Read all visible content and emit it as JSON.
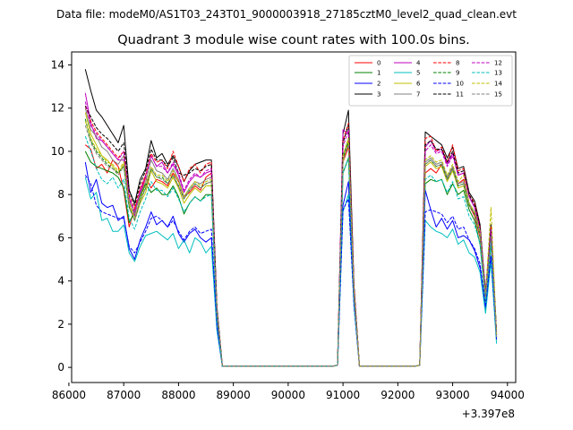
{
  "figure": {
    "suptitle": "Data file: modeM0/AS1T03_243T01_9000003918_27185cztM0_level2_quad_clean.evt"
  },
  "chart_data": {
    "type": "line",
    "title": "Quadrant 3 module wise count rates with 100.0s bins.",
    "xlabel": "",
    "ylabel": "",
    "xlim": [
      86050,
      94150
    ],
    "ylim": [
      -0.7,
      14.6
    ],
    "x_offset_label": "+3.397e8",
    "xticks": [
      86000,
      87000,
      88000,
      89000,
      90000,
      91000,
      92000,
      93000,
      94000
    ],
    "yticks": [
      0,
      2,
      4,
      6,
      8,
      10,
      12,
      14
    ],
    "legend_position": "top-right",
    "grid": false,
    "x": [
      86300,
      86400,
      86500,
      86600,
      86700,
      86800,
      86900,
      87000,
      87100,
      87200,
      87300,
      87400,
      87500,
      87600,
      87700,
      87800,
      87900,
      88000,
      88100,
      88200,
      88300,
      88400,
      88500,
      88600,
      88700,
      88800,
      88900,
      90800,
      90900,
      91000,
      91100,
      91200,
      91300,
      92300,
      92400,
      92500,
      92600,
      92700,
      92800,
      92900,
      93000,
      93100,
      93200,
      93300,
      93400,
      93500,
      93600,
      93700,
      93800
    ],
    "series": [
      {
        "name": "0",
        "color": "#ff0000",
        "dash": "solid",
        "values": [
          10.3,
          10.1,
          9.2,
          9.4,
          9.0,
          9.6,
          9.3,
          8.2,
          6.5,
          7.4,
          8.0,
          8.8,
          8.3,
          8.7,
          8.6,
          8.4,
          9.0,
          8.6,
          7.9,
          8.1,
          8.4,
          8.2,
          8.8,
          9.0,
          2.5,
          0.05,
          0.05,
          0.05,
          0.1,
          9.5,
          10.2,
          3.5,
          0.05,
          0.05,
          0.1,
          9.0,
          9.2,
          9.0,
          9.4,
          8.7,
          9.2,
          8.5,
          8.7,
          7.5,
          7.0,
          6.0,
          3.2,
          6.0,
          1.5
        ]
      },
      {
        "name": "1",
        "color": "#008000",
        "dash": "solid",
        "values": [
          10.0,
          9.5,
          9.3,
          9.2,
          9.1,
          9.0,
          8.8,
          8.3,
          6.7,
          7.2,
          7.9,
          8.5,
          8.1,
          8.3,
          8.0,
          8.0,
          8.4,
          7.9,
          7.1,
          7.6,
          7.9,
          7.7,
          8.0,
          8.0,
          2.3,
          0.05,
          0.05,
          0.05,
          0.1,
          9.0,
          9.7,
          3.3,
          0.05,
          0.05,
          0.1,
          8.5,
          8.7,
          8.6,
          8.7,
          8.0,
          8.5,
          8.0,
          8.2,
          7.3,
          6.8,
          5.7,
          3.0,
          5.7,
          1.4
        ]
      },
      {
        "name": "2",
        "color": "#0000ff",
        "dash": "solid",
        "values": [
          9.5,
          8.1,
          8.7,
          7.6,
          7.4,
          7.5,
          6.8,
          7.0,
          5.5,
          5.0,
          5.9,
          6.5,
          7.2,
          6.6,
          6.8,
          6.5,
          7.0,
          6.2,
          5.8,
          6.2,
          6.4,
          6.0,
          5.8,
          6.0,
          1.9,
          0.05,
          0.05,
          0.05,
          0.1,
          7.5,
          8.6,
          3.0,
          0.05,
          0.05,
          0.1,
          8.2,
          7.3,
          6.5,
          6.9,
          6.4,
          6.8,
          6.0,
          6.1,
          5.9,
          5.4,
          4.6,
          2.7,
          5.1,
          1.3
        ]
      },
      {
        "name": "3",
        "color": "#000000",
        "dash": "solid",
        "values": [
          13.8,
          12.8,
          11.9,
          11.6,
          11.2,
          10.8,
          10.4,
          11.2,
          8.2,
          7.6,
          8.7,
          9.2,
          10.5,
          9.7,
          9.9,
          9.4,
          9.8,
          9.3,
          8.6,
          9.1,
          9.4,
          9.5,
          9.6,
          9.6,
          2.8,
          0.05,
          0.05,
          0.05,
          0.1,
          10.8,
          11.9,
          3.8,
          0.05,
          0.05,
          0.1,
          10.9,
          10.7,
          10.5,
          10.3,
          9.7,
          10.2,
          9.2,
          9.3,
          8.1,
          7.7,
          6.6,
          3.5,
          6.6,
          1.6
        ]
      },
      {
        "name": "4",
        "color": "#bf00bf",
        "dash": "solid",
        "values": [
          12.7,
          11.3,
          10.6,
          10.5,
          10.2,
          9.9,
          9.6,
          9.6,
          7.8,
          7.0,
          8.1,
          8.9,
          9.8,
          9.3,
          9.5,
          9.0,
          9.4,
          8.9,
          8.1,
          8.6,
          8.9,
          8.8,
          9.0,
          9.1,
          2.6,
          0.05,
          0.05,
          0.05,
          0.1,
          11.0,
          10.8,
          3.6,
          0.05,
          0.05,
          0.1,
          10.2,
          10.5,
          10.0,
          10.1,
          9.4,
          9.9,
          8.9,
          9.0,
          7.9,
          7.4,
          6.4,
          3.4,
          6.4,
          1.5
        ]
      },
      {
        "name": "5",
        "color": "#00bfbf",
        "dash": "solid",
        "values": [
          8.8,
          7.8,
          8.1,
          6.8,
          6.9,
          6.3,
          6.3,
          6.6,
          5.3,
          4.9,
          5.6,
          6.1,
          6.2,
          6.3,
          6.1,
          5.9,
          6.2,
          5.5,
          5.9,
          5.3,
          6.0,
          5.8,
          5.3,
          5.6,
          1.7,
          0.05,
          0.05,
          0.05,
          0.1,
          7.2,
          8.0,
          2.8,
          0.05,
          0.05,
          0.1,
          6.8,
          6.5,
          6.3,
          6.2,
          6.0,
          6.4,
          5.7,
          5.9,
          5.3,
          5.1,
          4.4,
          2.5,
          4.9,
          1.1
        ]
      },
      {
        "name": "6",
        "color": "#bfbf00",
        "dash": "solid",
        "values": [
          11.8,
          10.8,
          10.3,
          9.8,
          9.6,
          9.3,
          9.0,
          9.4,
          7.5,
          6.8,
          7.6,
          8.1,
          9.1,
          8.6,
          8.5,
          8.3,
          8.8,
          8.3,
          7.6,
          8.0,
          8.3,
          8.1,
          8.4,
          8.4,
          2.5,
          0.05,
          0.05,
          0.05,
          0.1,
          9.5,
          10.5,
          3.4,
          0.05,
          0.05,
          0.1,
          9.3,
          9.5,
          9.2,
          9.3,
          8.6,
          9.1,
          8.3,
          8.4,
          7.5,
          7.1,
          6.1,
          3.2,
          6.1,
          1.4
        ]
      },
      {
        "name": "7",
        "color": "#808080",
        "dash": "solid",
        "values": [
          12.0,
          11.0,
          10.7,
          10.2,
          10.0,
          9.6,
          9.4,
          9.8,
          7.7,
          7.1,
          8.0,
          8.6,
          9.6,
          9.1,
          9.0,
          8.7,
          9.2,
          8.7,
          7.9,
          8.3,
          8.6,
          8.5,
          8.7,
          8.8,
          2.6,
          0.05,
          0.05,
          0.05,
          0.1,
          9.8,
          10.6,
          3.5,
          0.05,
          0.05,
          0.1,
          9.5,
          9.7,
          9.4,
          9.5,
          8.8,
          9.3,
          8.5,
          8.6,
          7.6,
          7.2,
          6.2,
          3.3,
          6.2,
          1.5
        ]
      },
      {
        "name": "8",
        "color": "#ff0000",
        "dash": "dashed",
        "values": [
          12.1,
          11.4,
          10.9,
          10.6,
          10.3,
          10.0,
          9.7,
          10.0,
          8.0,
          7.3,
          8.3,
          8.9,
          9.9,
          9.5,
          9.6,
          9.2,
          10.0,
          9.3,
          8.6,
          9.2,
          9.4,
          9.0,
          9.4,
          9.5,
          2.7,
          0.05,
          0.05,
          0.05,
          0.1,
          10.5,
          11.3,
          3.7,
          0.05,
          0.05,
          0.1,
          10.6,
          10.7,
          10.0,
          10.2,
          9.5,
          10.3,
          9.1,
          9.2,
          8.0,
          7.6,
          6.5,
          3.4,
          6.5,
          1.6
        ]
      },
      {
        "name": "9",
        "color": "#008000",
        "dash": "dashed",
        "values": [
          11.5,
          10.5,
          10.0,
          9.7,
          9.4,
          9.2,
          9.0,
          9.3,
          7.4,
          6.8,
          7.7,
          8.3,
          9.2,
          8.8,
          8.8,
          8.5,
          8.9,
          8.4,
          7.8,
          8.2,
          8.5,
          8.3,
          8.5,
          8.6,
          2.5,
          0.05,
          0.05,
          0.05,
          0.1,
          9.7,
          10.4,
          3.4,
          0.05,
          0.05,
          0.1,
          9.4,
          9.6,
          9.3,
          9.4,
          8.7,
          9.2,
          8.4,
          8.5,
          7.5,
          7.1,
          6.1,
          3.2,
          6.1,
          1.4
        ]
      },
      {
        "name": "10",
        "color": "#0000ff",
        "dash": "dashed",
        "values": [
          8.9,
          8.5,
          7.5,
          7.2,
          7.1,
          7.0,
          6.9,
          6.9,
          5.6,
          5.3,
          5.8,
          6.3,
          6.9,
          7.0,
          6.8,
          6.5,
          6.8,
          6.3,
          5.9,
          6.3,
          6.5,
          6.2,
          6.3,
          6.4,
          1.9,
          0.05,
          0.05,
          0.05,
          0.1,
          7.3,
          7.8,
          2.9,
          0.05,
          0.05,
          0.1,
          7.2,
          7.3,
          7.2,
          7.1,
          6.7,
          7.0,
          6.4,
          6.5,
          5.9,
          5.5,
          4.8,
          2.8,
          5.2,
          1.3
        ]
      },
      {
        "name": "11",
        "color": "#000000",
        "dash": "dashed",
        "values": [
          12.1,
          11.6,
          11.1,
          10.8,
          10.6,
          10.3,
          10.0,
          10.4,
          8.2,
          7.5,
          8.5,
          9.1,
          10.1,
          9.6,
          9.6,
          9.3,
          9.7,
          9.0,
          8.9,
          9.0,
          9.2,
          9.1,
          9.3,
          9.4,
          2.7,
          0.05,
          0.05,
          0.05,
          0.1,
          10.4,
          11.2,
          3.7,
          0.05,
          0.05,
          0.1,
          10.3,
          10.5,
          10.1,
          10.1,
          9.5,
          10.0,
          9.0,
          9.1,
          8.0,
          7.5,
          6.5,
          3.4,
          6.4,
          1.6
        ]
      },
      {
        "name": "12",
        "color": "#bf00bf",
        "dash": "dashed",
        "values": [
          12.3,
          11.2,
          10.8,
          10.5,
          10.2,
          9.9,
          9.6,
          10.0,
          7.9,
          7.2,
          8.2,
          8.8,
          9.8,
          9.3,
          9.3,
          9.0,
          9.5,
          9.0,
          8.2,
          8.7,
          9.0,
          8.8,
          9.1,
          9.2,
          2.7,
          0.05,
          0.05,
          0.05,
          0.1,
          10.2,
          11.0,
          3.6,
          0.05,
          0.05,
          0.1,
          10.0,
          10.3,
          9.9,
          10.0,
          9.3,
          9.8,
          8.9,
          9.0,
          7.9,
          7.4,
          6.4,
          3.4,
          6.4,
          1.5
        ]
      },
      {
        "name": "13",
        "color": "#00bfbf",
        "dash": "dashed",
        "values": [
          10.7,
          10.0,
          9.2,
          8.7,
          8.5,
          8.8,
          8.3,
          8.7,
          6.9,
          6.4,
          7.2,
          7.8,
          8.6,
          8.2,
          8.2,
          7.9,
          8.3,
          7.8,
          7.2,
          7.6,
          7.9,
          7.7,
          7.9,
          8.0,
          2.3,
          0.05,
          0.05,
          0.05,
          0.1,
          9.0,
          9.7,
          3.2,
          0.05,
          0.05,
          0.1,
          8.7,
          8.9,
          8.6,
          8.7,
          8.1,
          8.6,
          7.8,
          7.9,
          7.0,
          6.6,
          5.7,
          3.0,
          5.8,
          1.4
        ]
      },
      {
        "name": "14",
        "color": "#bfbf00",
        "dash": "dashed",
        "values": [
          11.4,
          10.6,
          10.1,
          9.8,
          9.5,
          9.4,
          9.1,
          9.5,
          7.6,
          6.9,
          7.8,
          8.4,
          9.3,
          8.9,
          8.9,
          8.6,
          9.1,
          8.6,
          7.9,
          8.3,
          8.6,
          8.4,
          8.6,
          8.7,
          2.6,
          0.05,
          0.05,
          0.05,
          0.1,
          9.8,
          10.6,
          3.5,
          0.05,
          0.05,
          0.1,
          9.6,
          9.8,
          9.5,
          9.6,
          8.9,
          9.4,
          8.6,
          8.9,
          7.6,
          7.2,
          6.3,
          3.3,
          7.4,
          1.5
        ]
      },
      {
        "name": "15",
        "color": "#808080",
        "dash": "dashed",
        "values": [
          11.2,
          10.4,
          9.9,
          9.6,
          9.3,
          9.2,
          8.9,
          9.3,
          7.4,
          6.8,
          7.7,
          8.3,
          9.2,
          8.8,
          8.7,
          8.5,
          8.9,
          8.4,
          7.8,
          8.2,
          8.5,
          8.3,
          8.5,
          8.6,
          2.5,
          0.05,
          0.05,
          0.05,
          0.1,
          9.6,
          10.3,
          3.4,
          0.05,
          0.05,
          0.1,
          9.4,
          9.6,
          9.3,
          9.4,
          8.7,
          9.2,
          8.4,
          8.5,
          7.5,
          7.1,
          6.1,
          3.2,
          6.1,
          1.4
        ]
      }
    ]
  }
}
